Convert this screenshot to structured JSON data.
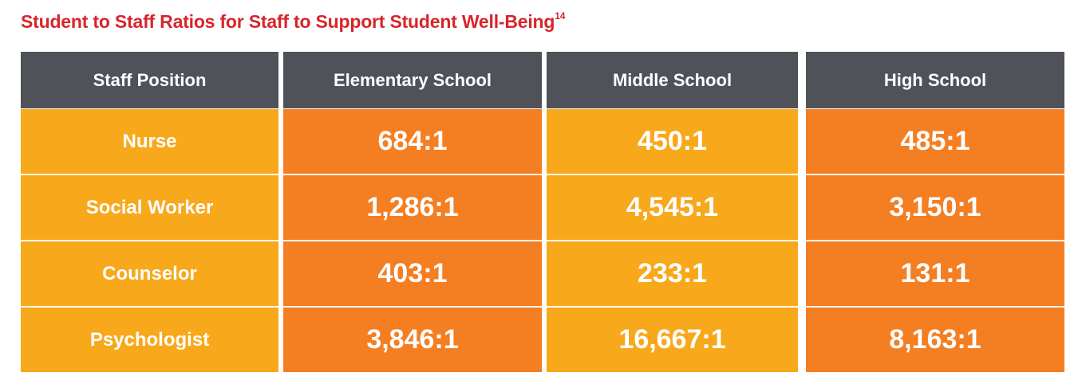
{
  "title": "Student to Staff Ratios for Staff to Support Student Well-Being",
  "title_footnote": "14",
  "colors": {
    "title": "#d7252c",
    "header_bg": "#4f5259",
    "light_orange": "#f8a81b",
    "dark_orange": "#f47e22"
  },
  "chart_data": {
    "type": "table",
    "columns": [
      "Staff Position",
      "Elementary School",
      "Middle School",
      "High School"
    ],
    "rows": [
      {
        "position": "Nurse",
        "elementary": "684:1",
        "middle": "450:1",
        "high": "485:1"
      },
      {
        "position": "Social Worker",
        "elementary": "1,286:1",
        "middle": "4,545:1",
        "high": "3,150:1"
      },
      {
        "position": "Counselor",
        "elementary": "403:1",
        "middle": "233:1",
        "high": "131:1"
      },
      {
        "position": "Psychologist",
        "elementary": "3,846:1",
        "middle": "16,667:1",
        "high": "8,163:1"
      }
    ]
  }
}
